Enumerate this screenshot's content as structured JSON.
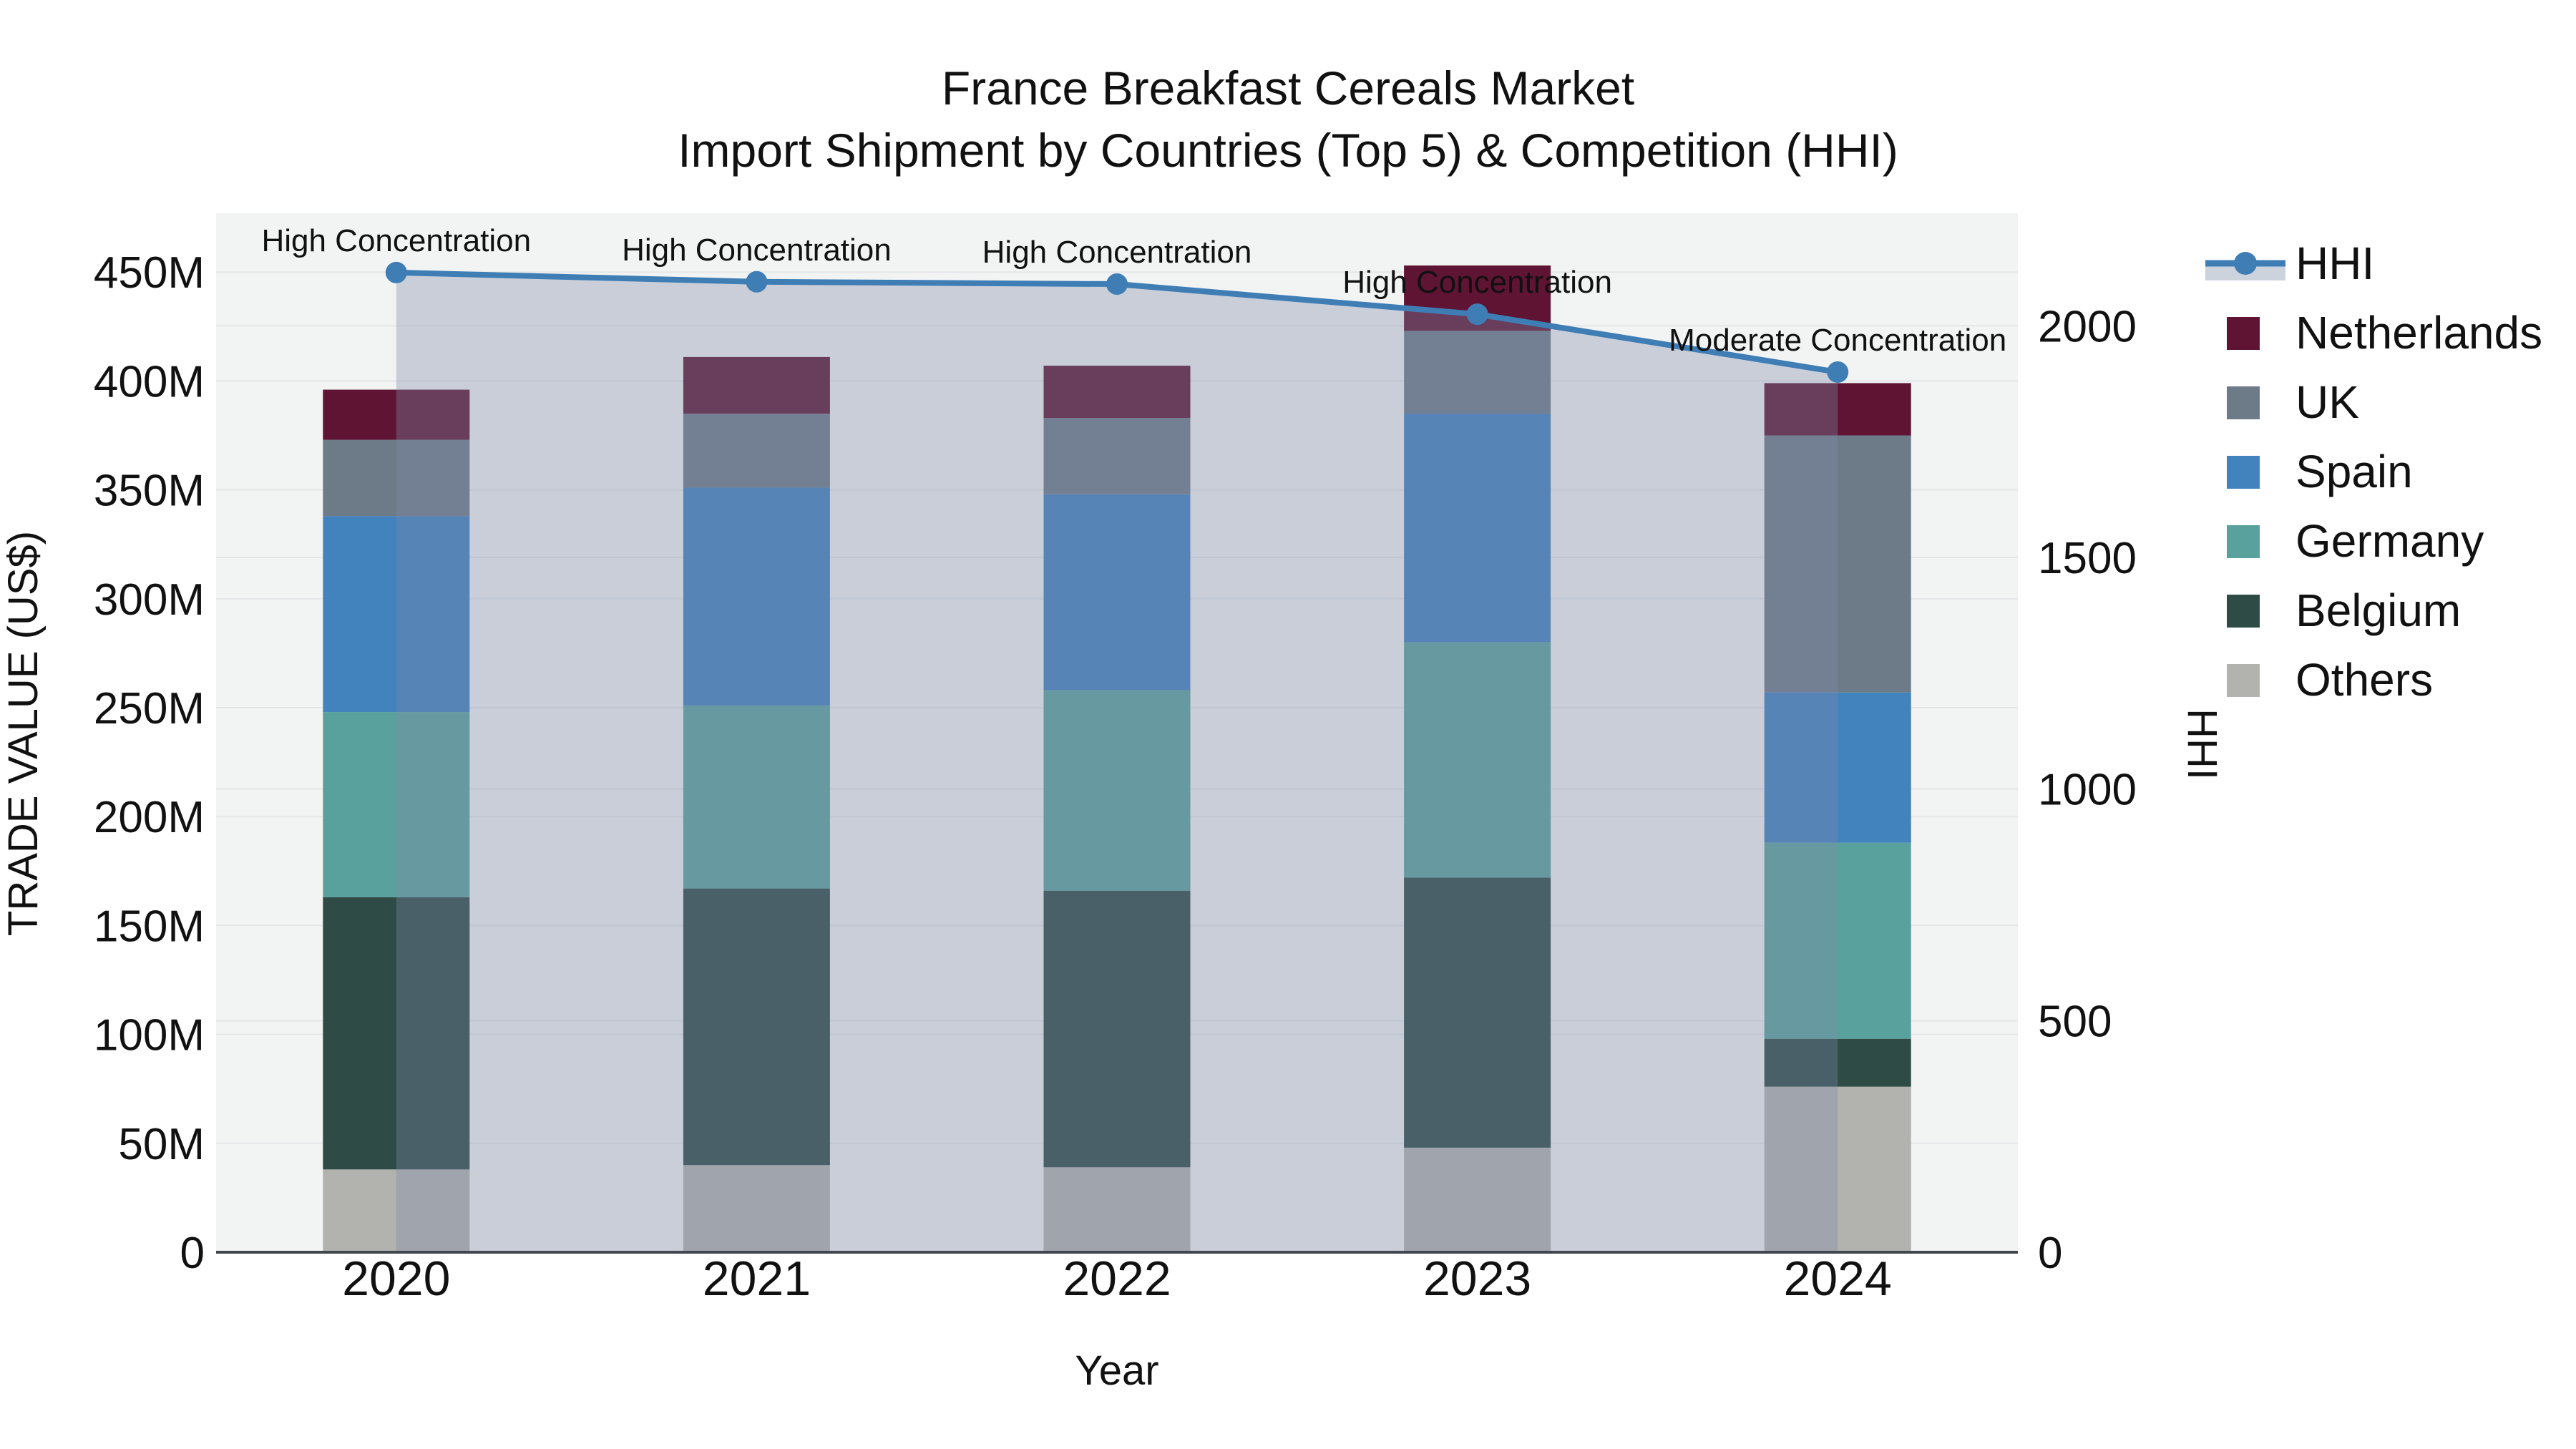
{
  "title": {
    "line1": "France Breakfast Cereals Market",
    "line2": "Import Shipment by Countries (Top 5) & Competition (HHI)"
  },
  "chart_data": {
    "type": "bar",
    "subtype": "stacked-bar-with-line",
    "categories": [
      "2020",
      "2021",
      "2022",
      "2023",
      "2024"
    ],
    "xlabel": "Year",
    "ylabel_left": "TRADE VALUE (US$)",
    "ylabel_right": "HHI",
    "ylim_left": [
      0,
      477
    ],
    "ylim_right": [
      0,
      2243
    ],
    "yticks_left": [
      {
        "label": "0",
        "value": 0
      },
      {
        "label": "50M",
        "value": 50
      },
      {
        "label": "100M",
        "value": 100
      },
      {
        "label": "150M",
        "value": 150
      },
      {
        "label": "200M",
        "value": 200
      },
      {
        "label": "250M",
        "value": 250
      },
      {
        "label": "300M",
        "value": 300
      },
      {
        "label": "350M",
        "value": 350
      },
      {
        "label": "400M",
        "value": 400
      },
      {
        "label": "450M",
        "value": 450
      }
    ],
    "yticks_right": [
      {
        "label": "0",
        "value": 0
      },
      {
        "label": "500",
        "value": 500
      },
      {
        "label": "1000",
        "value": 1000
      },
      {
        "label": "1500",
        "value": 1500
      },
      {
        "label": "2000",
        "value": 2000
      }
    ],
    "series": [
      {
        "name": "Netherlands",
        "color": "#5f1434",
        "values": [
          23,
          26,
          24,
          30,
          24
        ]
      },
      {
        "name": "UK",
        "color": "#6d7b88",
        "values": [
          35,
          34,
          35,
          38,
          118
        ]
      },
      {
        "name": "Spain",
        "color": "#4282bd",
        "values": [
          90,
          100,
          90,
          105,
          69
        ]
      },
      {
        "name": "Germany",
        "color": "#59a19c",
        "values": [
          85,
          84,
          92,
          108,
          90
        ]
      },
      {
        "name": "Belgium",
        "color": "#2e4b45",
        "values": [
          125,
          127,
          127,
          124,
          22
        ]
      },
      {
        "name": "Others",
        "color": "#b2b2af",
        "values": [
          38,
          40,
          39,
          48,
          76
        ]
      }
    ],
    "bar_totals": [
      396,
      411,
      407,
      453,
      399
    ],
    "hhi": {
      "name": "HHI",
      "color": "#3f7db5",
      "fill_color": "rgba(125,138,170,0.35)",
      "values": [
        2115,
        2095,
        2090,
        2025,
        1900
      ]
    },
    "annotations": [
      {
        "text": "High Concentration",
        "year": "2020"
      },
      {
        "text": "High Concentration",
        "year": "2021"
      },
      {
        "text": "High Concentration",
        "year": "2022"
      },
      {
        "text": "High Concentration",
        "year": "2023"
      },
      {
        "text": "Moderate Concentration",
        "year": "2024"
      }
    ],
    "legend": [
      "HHI",
      "Netherlands",
      "UK",
      "Spain",
      "Germany",
      "Belgium",
      "Others"
    ],
    "legend_position": "right",
    "grid": true
  },
  "colors": {
    "plot_bg": "#f2f3f3",
    "grid": "#e4e6e8",
    "axis_line": "#42464d",
    "text": "#111111",
    "legend_fill_band": "#ccd3dd"
  }
}
